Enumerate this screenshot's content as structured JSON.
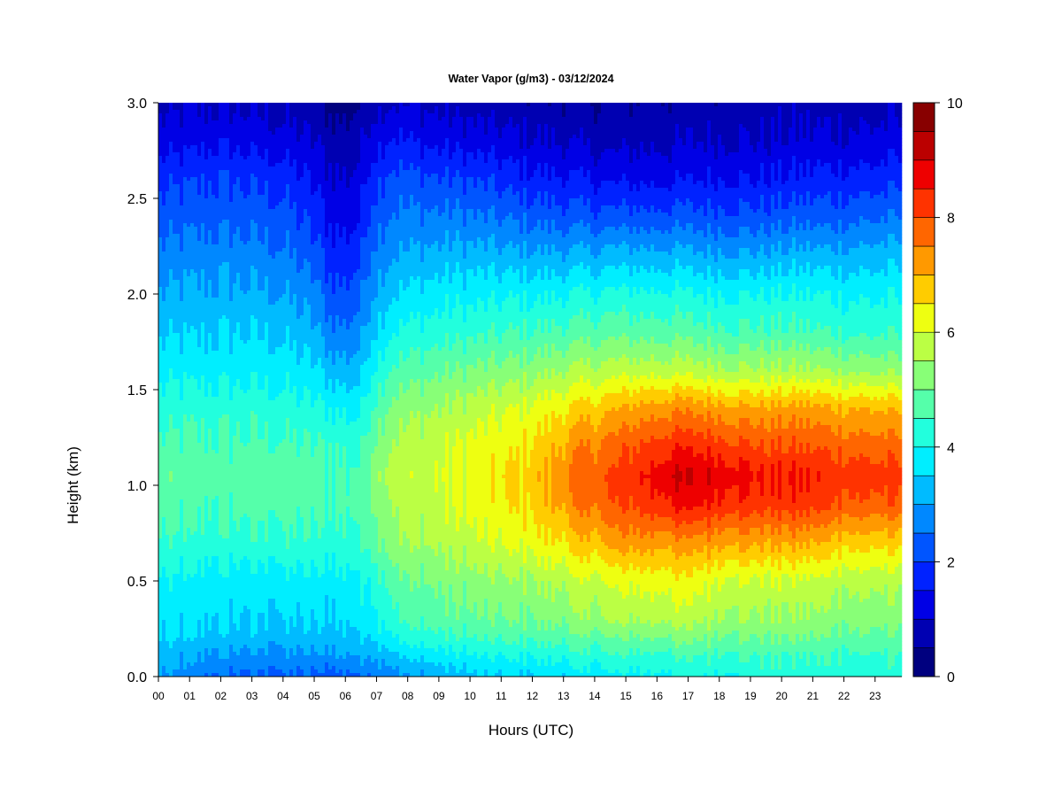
{
  "chart_data": {
    "type": "heatmap",
    "title": "Water Vapor (g/m3) - 03/12/2024",
    "xlabel": "Hours (UTC)",
    "ylabel": "Height (km)",
    "x_tick_labels": [
      "00",
      "01",
      "02",
      "03",
      "04",
      "05",
      "06",
      "07",
      "08",
      "09",
      "10",
      "11",
      "12",
      "13",
      "14",
      "15",
      "16",
      "17",
      "18",
      "19",
      "20",
      "21",
      "22",
      "23"
    ],
    "x_range": [
      0,
      24
    ],
    "y_tick_labels": [
      "0.0",
      "0.5",
      "1.0",
      "1.5",
      "2.0",
      "2.5",
      "3.0"
    ],
    "y_range": [
      0,
      3
    ],
    "colorbar": {
      "min": 0,
      "max": 10,
      "tick_labels": [
        "0",
        "2",
        "4",
        "6",
        "8",
        "10"
      ],
      "levels": [
        0,
        0.5,
        1,
        1.5,
        2,
        2.5,
        3,
        3.5,
        4,
        4.5,
        5,
        5.5,
        6,
        6.5,
        7,
        7.5,
        8,
        8.5,
        9,
        9.5,
        10
      ],
      "colors": [
        "#00007f",
        "#0000b2",
        "#0000e5",
        "#0022ff",
        "#0055ff",
        "#0088ff",
        "#00bbff",
        "#00eeff",
        "#22ffdd",
        "#55ffaa",
        "#88ff77",
        "#bbff44",
        "#eeff11",
        "#ffcc00",
        "#ff9900",
        "#ff6600",
        "#ff3300",
        "#ee0000",
        "#bb0000",
        "#880000"
      ]
    },
    "height_km": [
      0.0,
      0.1,
      0.2,
      0.3,
      0.5,
      0.7,
      0.9,
      1.05,
      1.2,
      1.4,
      1.6,
      1.8,
      2.0,
      2.2,
      2.4,
      2.6,
      2.8,
      3.0
    ],
    "hours": [
      0,
      1,
      2,
      3,
      4,
      5,
      5.5,
      6,
      6.5,
      6.8,
      7.5,
      8.5,
      9.5,
      10.5,
      11.5,
      12.5,
      13.5,
      14.5,
      15.5,
      16.5,
      17.5,
      18.5,
      19.5,
      20.5,
      21.5,
      22.5,
      23.8
    ],
    "values": [
      [
        3.0,
        2.7,
        2.5,
        2.4,
        2.4,
        2.3,
        2.2,
        2.4,
        2.5,
        2.6,
        2.8,
        3.0,
        3.2,
        3.4,
        3.5,
        3.6,
        3.7,
        3.8,
        3.9,
        4.0,
        4.1,
        4.1,
        4.2,
        4.2,
        4.3,
        4.3,
        4.2
      ],
      [
        3.2,
        3.0,
        2.9,
        2.8,
        2.8,
        2.8,
        2.9,
        3.0,
        3.0,
        3.2,
        3.4,
        3.6,
        3.8,
        3.9,
        4.0,
        4.1,
        4.2,
        4.3,
        4.4,
        4.4,
        4.5,
        4.5,
        4.5,
        4.4,
        4.5,
        4.4,
        4.4
      ],
      [
        3.5,
        3.4,
        3.3,
        3.3,
        3.2,
        3.3,
        3.3,
        3.4,
        3.4,
        3.7,
        4.0,
        4.3,
        4.4,
        4.5,
        4.6,
        4.7,
        4.8,
        4.9,
        5.0,
        5.1,
        5.1,
        5.0,
        5.0,
        5.0,
        4.9,
        4.9,
        4.8
      ],
      [
        3.6,
        3.6,
        3.6,
        3.5,
        3.5,
        3.5,
        3.5,
        3.6,
        3.7,
        4.0,
        4.4,
        4.7,
        4.8,
        4.9,
        5.0,
        5.1,
        5.3,
        5.5,
        5.6,
        5.7,
        5.6,
        5.5,
        5.4,
        5.4,
        5.3,
        5.2,
        5.1
      ],
      [
        3.9,
        3.8,
        3.8,
        3.7,
        3.8,
        3.8,
        3.8,
        3.9,
        3.9,
        4.2,
        4.8,
        5.0,
        5.2,
        5.3,
        5.4,
        5.6,
        5.8,
        6.0,
        6.2,
        6.3,
        6.2,
        6.0,
        5.9,
        5.9,
        5.8,
        5.7,
        5.6
      ],
      [
        4.4,
        4.3,
        4.3,
        4.3,
        4.4,
        4.3,
        4.3,
        4.4,
        4.4,
        4.9,
        5.4,
        5.5,
        5.7,
        5.9,
        6.1,
        6.4,
        6.7,
        7.1,
        7.3,
        7.2,
        7.3,
        7.2,
        7.1,
        7.1,
        6.9,
        6.7,
        6.6
      ],
      [
        4.7,
        4.6,
        4.6,
        4.7,
        4.7,
        4.6,
        4.6,
        4.6,
        4.7,
        5.1,
        5.6,
        5.8,
        6.0,
        6.2,
        6.5,
        6.9,
        7.5,
        7.9,
        8.2,
        8.6,
        8.6,
        8.4,
        8.2,
        8.3,
        8.1,
        7.9,
        7.8
      ],
      [
        4.8,
        4.8,
        4.7,
        4.8,
        4.8,
        4.7,
        4.6,
        4.6,
        4.6,
        5.2,
        5.8,
        5.9,
        6.1,
        6.3,
        6.6,
        7.0,
        7.7,
        8.0,
        8.5,
        9.0,
        9.0,
        8.8,
        8.5,
        8.6,
        8.4,
        8.3,
        8.2
      ],
      [
        4.6,
        4.6,
        4.6,
        4.6,
        4.6,
        4.5,
        4.5,
        4.4,
        4.4,
        5.0,
        5.6,
        5.8,
        6.0,
        6.2,
        6.4,
        6.8,
        7.4,
        7.7,
        8.1,
        8.4,
        8.4,
        8.2,
        8.0,
        8.0,
        7.9,
        7.8,
        7.7
      ],
      [
        4.2,
        4.3,
        4.3,
        4.3,
        4.2,
        4.1,
        4.0,
        3.9,
        3.9,
        4.5,
        5.2,
        5.4,
        5.6,
        5.8,
        6.0,
        6.3,
        6.6,
        6.9,
        7.2,
        7.4,
        7.3,
        7.2,
        7.1,
        7.2,
        7.1,
        7.0,
        6.9
      ],
      [
        3.8,
        3.8,
        3.8,
        3.8,
        3.8,
        3.6,
        3.3,
        3.2,
        3.3,
        4.0,
        4.6,
        4.8,
        5.0,
        5.1,
        5.2,
        5.4,
        5.6,
        5.7,
        5.8,
        5.8,
        5.7,
        5.6,
        5.6,
        5.6,
        5.5,
        5.4,
        5.3
      ],
      [
        3.4,
        3.4,
        3.5,
        3.5,
        3.4,
        3.1,
        2.7,
        2.6,
        2.8,
        3.4,
        4.0,
        4.2,
        4.3,
        4.4,
        4.5,
        4.6,
        4.7,
        4.8,
        4.8,
        4.8,
        4.7,
        4.6,
        4.6,
        4.6,
        4.5,
        4.4,
        4.4
      ],
      [
        3.0,
        3.1,
        3.1,
        3.1,
        3.0,
        2.7,
        2.2,
        2.1,
        2.4,
        3.0,
        3.5,
        3.7,
        3.8,
        3.8,
        3.9,
        3.9,
        4.0,
        4.1,
        4.1,
        4.1,
        4.0,
        4.0,
        4.0,
        4.0,
        4.0,
        3.9,
        3.9
      ],
      [
        2.6,
        2.7,
        2.8,
        2.7,
        2.6,
        2.2,
        1.8,
        1.7,
        1.9,
        2.6,
        3.0,
        3.1,
        3.2,
        3.2,
        3.1,
        3.1,
        3.1,
        3.2,
        3.2,
        3.2,
        3.1,
        3.1,
        3.1,
        3.2,
        3.2,
        3.2,
        3.3
      ],
      [
        2.2,
        2.3,
        2.3,
        2.3,
        2.2,
        1.8,
        1.4,
        1.3,
        1.5,
        2.2,
        2.6,
        2.6,
        2.6,
        2.5,
        2.4,
        2.3,
        2.2,
        2.2,
        2.2,
        2.2,
        2.2,
        2.2,
        2.2,
        2.3,
        2.3,
        2.4,
        2.5
      ],
      [
        1.8,
        1.9,
        2.0,
        1.9,
        1.8,
        1.4,
        1.1,
        1.0,
        1.2,
        1.8,
        2.2,
        2.1,
        2.0,
        1.9,
        1.7,
        1.6,
        1.5,
        1.4,
        1.4,
        1.4,
        1.5,
        1.5,
        1.5,
        1.6,
        1.7,
        1.7,
        1.8
      ],
      [
        1.2,
        1.3,
        1.4,
        1.3,
        1.2,
        1.0,
        0.8,
        0.7,
        0.9,
        1.3,
        1.6,
        1.4,
        1.3,
        1.2,
        1.1,
        1.0,
        0.9,
        0.8,
        0.9,
        0.9,
        1.0,
        1.0,
        1.0,
        1.1,
        1.1,
        1.1,
        1.2
      ],
      [
        0.8,
        0.9,
        0.9,
        0.9,
        0.8,
        0.6,
        0.3,
        0.3,
        0.5,
        0.8,
        1.0,
        0.9,
        0.8,
        0.7,
        0.7,
        0.6,
        0.6,
        0.5,
        0.6,
        0.6,
        0.7,
        0.7,
        0.7,
        0.8,
        0.8,
        0.8,
        0.8
      ]
    ]
  }
}
